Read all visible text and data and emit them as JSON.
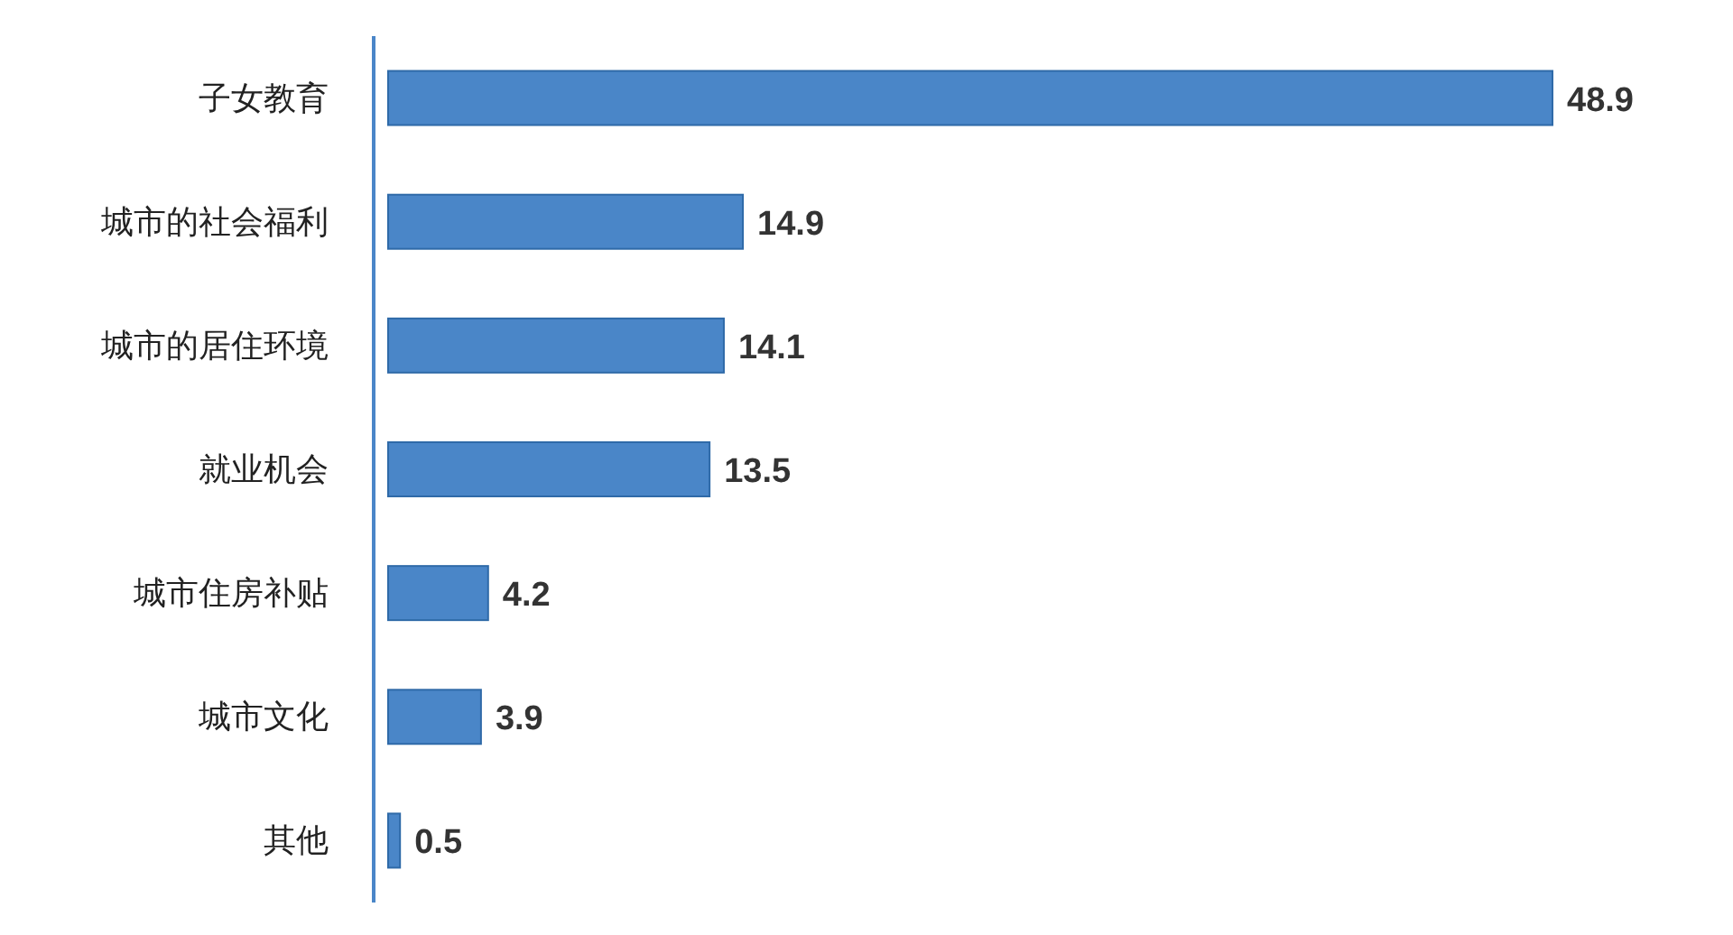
{
  "chart_data": {
    "type": "bar",
    "orientation": "horizontal",
    "categories": [
      "子女教育",
      "城市的社会福利",
      "城市的居住环境",
      "就业机会",
      "城市住房补贴",
      "城市文化",
      "其他"
    ],
    "values": [
      48.9,
      14.9,
      14.1,
      13.5,
      4.2,
      3.9,
      0.5
    ],
    "color": "#4a86c8",
    "data_labels": true
  }
}
